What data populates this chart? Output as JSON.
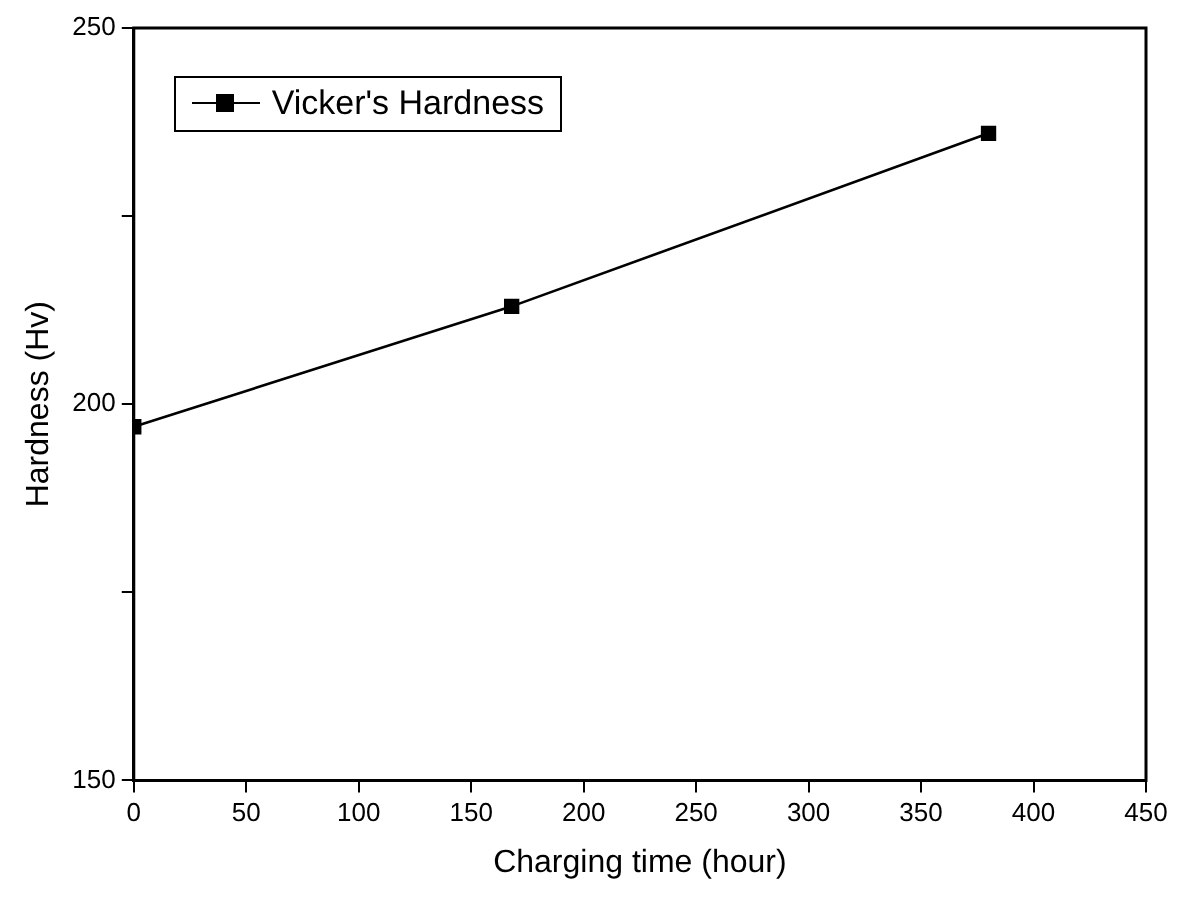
{
  "chart_data": {
    "type": "line",
    "xlabel": "Charging time (hour)",
    "ylabel": "Hardness (Hv)",
    "x": [
      0,
      168,
      380
    ],
    "series": [
      {
        "name": "Vicker's Hardness",
        "color": "#000000",
        "values": [
          197,
          213,
          236
        ]
      }
    ],
    "xlim": [
      0,
      450
    ],
    "xticks": [
      0,
      50,
      100,
      150,
      200,
      250,
      300,
      350,
      400,
      450
    ],
    "ylim": [
      150,
      250
    ],
    "yticks": [
      150,
      {
        "value": 175,
        "label": null
      },
      200,
      {
        "value": 225,
        "label": null
      },
      250
    ],
    "grid": false,
    "legend": "top left",
    "marker": "square",
    "line_style": "solid"
  }
}
